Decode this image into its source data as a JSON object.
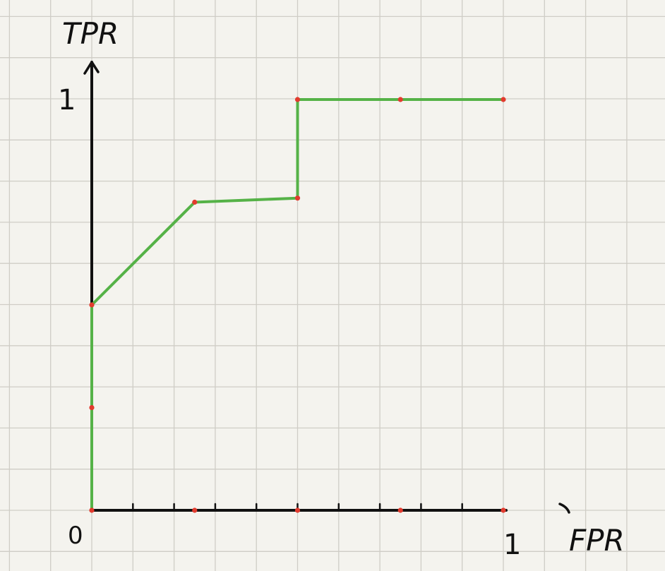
{
  "chart_data": {
    "type": "line",
    "title": "",
    "xlabel": "FPR",
    "ylabel": "TPR",
    "xlim": [
      0,
      1
    ],
    "ylim": [
      0,
      1
    ],
    "grid": true,
    "tick_labels": {
      "origin": "0",
      "x_max": "1",
      "y_max": "1"
    },
    "series": [
      {
        "points": [
          {
            "x": 0,
            "y": 0
          },
          {
            "x": 0,
            "y": 0.5
          },
          {
            "x": 0.25,
            "y": 0.75
          },
          {
            "x": 0.5,
            "y": 0.76
          },
          {
            "x": 0.5,
            "y": 1
          },
          {
            "x": 1,
            "y": 1
          }
        ]
      }
    ],
    "markers": [
      {
        "x": 0,
        "y": 0
      },
      {
        "x": 0,
        "y": 0.25
      },
      {
        "x": 0,
        "y": 0.5
      },
      {
        "x": 0.25,
        "y": 0.75
      },
      {
        "x": 0.5,
        "y": 0.76
      },
      {
        "x": 0.5,
        "y": 1
      },
      {
        "x": 0.75,
        "y": 1
      },
      {
        "x": 1,
        "y": 1
      },
      {
        "x": 0.25,
        "y": 0
      },
      {
        "x": 0.5,
        "y": 0
      },
      {
        "x": 0.75,
        "y": 0
      },
      {
        "x": 1,
        "y": 0
      }
    ],
    "x_minor_ticks": [
      0.1,
      0.2,
      0.3,
      0.4,
      0.5,
      0.6,
      0.7,
      0.8,
      0.9
    ],
    "colors": {
      "line": "#55b247",
      "marker": "#e23b2e",
      "axis": "#111111",
      "grid": "#cfcdc6"
    }
  }
}
